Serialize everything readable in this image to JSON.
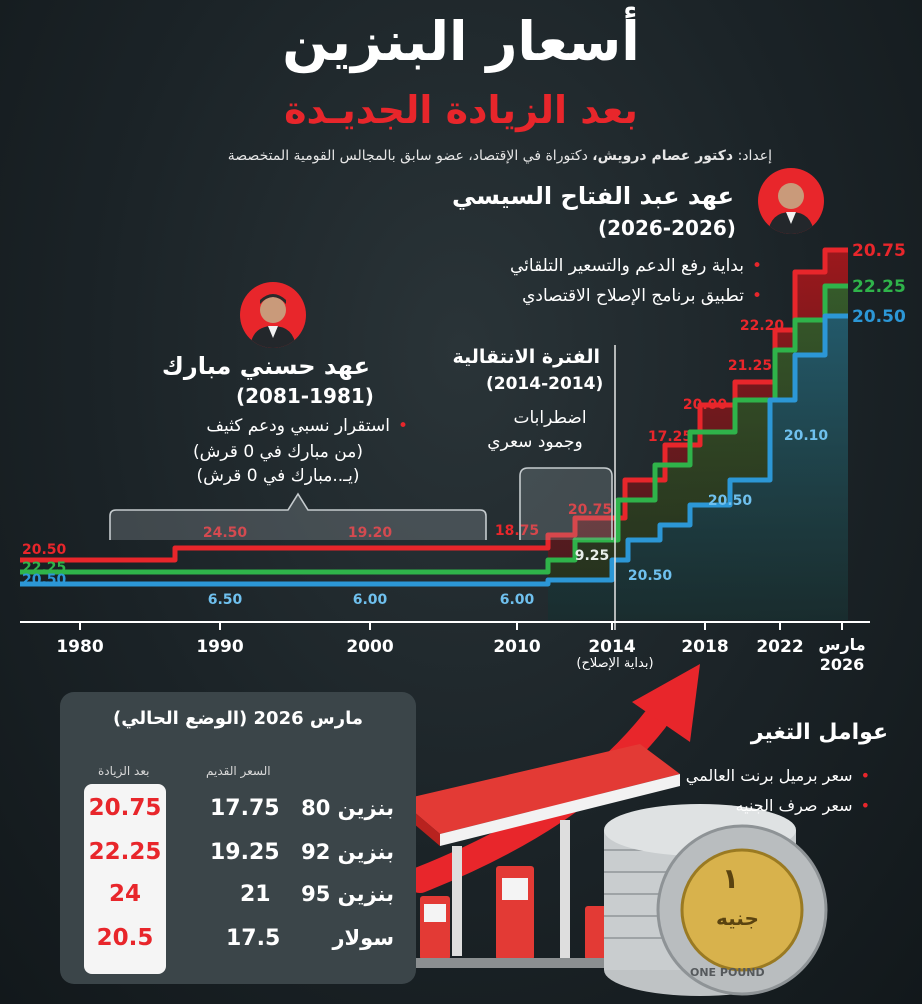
{
  "header": {
    "title": "أسعار البنزين",
    "subtitle": "بعد الزيادة الجديـدة",
    "credit_prefix": "إعداد:",
    "credit_name": "دكتور عصام درويش،",
    "credit_rest": "دكتوراة في الإقتصاد، عضو سابق بالمجالس القومية المتخصصة"
  },
  "eras": {
    "sisi": {
      "title": "عهد عبد الفتاح السيسي",
      "years": "(2026-2026)",
      "bullets": [
        "بداية رفع الدعم والتسعير التلقائي",
        "تطبيق برنامج الإصلاح الاقتصادي"
      ]
    },
    "mubarak": {
      "title": "عهد حسني مبارك",
      "years": "(2081-1981)",
      "bullet": "استقرار نسبي ودعم كثيف",
      "line2": "(من مبارك في 0 قرش)",
      "line3": "(يـ..مبارك في 0 قرش)"
    },
    "transition": {
      "title": "الفترة الانتقالية",
      "years": "(2014-2014)",
      "line1": "اضطرابات",
      "line2": "وجمود سعري"
    }
  },
  "chart_data": {
    "type": "line",
    "x_ticks": [
      "1980",
      "1990",
      "2000",
      "2010",
      "2014",
      "2018",
      "2022",
      "مارس 2026"
    ],
    "x_note": "(بداية الإصلاح)",
    "series": [
      {
        "color": "#e8262b",
        "start_label": "20.50",
        "end_label": "20.75",
        "labels": [
          "24.50",
          "19.20",
          "18.75",
          "20.75",
          "17.25",
          "20.00",
          "21.25",
          "22.20"
        ]
      },
      {
        "color": "#2fb34a",
        "start_label": "22.25",
        "end_label": "22.25",
        "labels": [
          "9.25"
        ]
      },
      {
        "color": "#2c97d6",
        "start_label": "20.50",
        "end_label": "20.50",
        "labels": [
          "6.50",
          "6.00",
          "6.00",
          "20.50",
          "20.50",
          "20.10"
        ]
      }
    ]
  },
  "table": {
    "title": "مارس 2026 (الوضع الحالي)",
    "col_old": "السعر القديم",
    "col_new": "بعد الزيادة",
    "rows": [
      {
        "name": "بنزين 80",
        "old": "17.75",
        "new": "20.75"
      },
      {
        "name": "بنزين 92",
        "old": "19.25",
        "new": "22.25"
      },
      {
        "name": "بنزين 95",
        "old": "21",
        "new": "24"
      },
      {
        "name": "سولار",
        "old": "17.5",
        "new": "20.5"
      }
    ]
  },
  "factors": {
    "title": "عوامل التغير",
    "items": [
      "سعر برميل برنت العالمي",
      "سعر صرف الجنيه"
    ]
  },
  "coin": {
    "numeral": "١",
    "word": "جنيه",
    "text": "ONE POUND"
  },
  "colors": {
    "red": "#e8262b",
    "green": "#2fb34a",
    "blue": "#2c97d6",
    "background": "#1b2327"
  }
}
